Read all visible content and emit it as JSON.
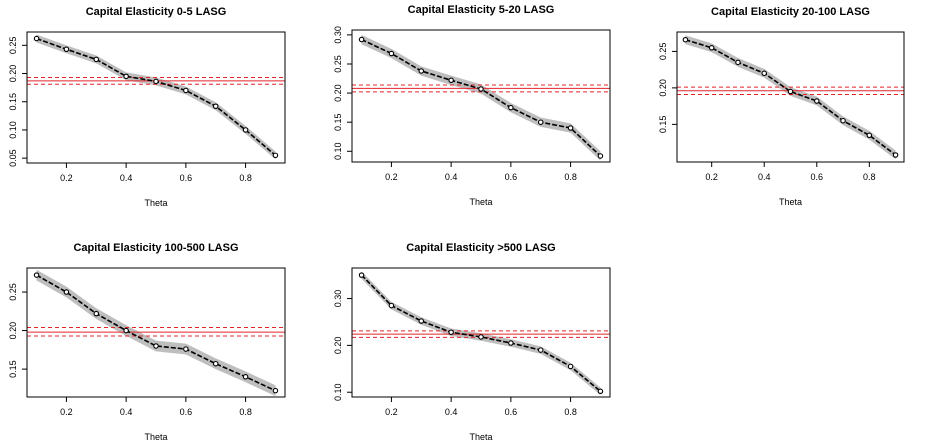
{
  "chart_data": [
    {
      "type": "line",
      "title": "Capital Elasticity 0-5 LASG",
      "xlabel": "Theta",
      "ylabel": "",
      "xlim": [
        0.1,
        0.9
      ],
      "ylim": [
        0.05,
        0.265
      ],
      "xticks": [
        0.2,
        0.4,
        0.6,
        0.8
      ],
      "yticks": [
        0.05,
        0.1,
        0.15,
        0.2,
        0.25
      ],
      "x": [
        0.1,
        0.2,
        0.3,
        0.4,
        0.5,
        0.6,
        0.7,
        0.8,
        0.9
      ],
      "values": [
        0.262,
        0.243,
        0.225,
        0.195,
        0.186,
        0.17,
        0.142,
        0.1,
        0.055
      ],
      "band_halfwidth": 0.007,
      "hline": 0.187,
      "hline_ci": [
        0.181,
        0.193
      ],
      "colors": {
        "line": "#000000",
        "band": "#bebebe",
        "hline": "#e3242b"
      }
    },
    {
      "type": "line",
      "title": "Capital Elasticity 5-20 LASG",
      "xlabel": "Theta",
      "ylabel": "",
      "xlim": [
        0.1,
        0.9
      ],
      "ylim": [
        0.09,
        0.3
      ],
      "xticks": [
        0.2,
        0.4,
        0.6,
        0.8
      ],
      "yticks": [
        0.1,
        0.15,
        0.2,
        0.25,
        0.3
      ],
      "x": [
        0.1,
        0.2,
        0.3,
        0.4,
        0.5,
        0.6,
        0.7,
        0.8,
        0.9
      ],
      "values": [
        0.292,
        0.268,
        0.238,
        0.222,
        0.207,
        0.175,
        0.15,
        0.14,
        0.092
      ],
      "band_halfwidth": 0.008,
      "hline": 0.208,
      "hline_ci": [
        0.202,
        0.214
      ],
      "colors": {
        "line": "#000000",
        "band": "#bebebe",
        "hline": "#e3242b"
      }
    },
    {
      "type": "line",
      "title": "Capital Elasticity 20-100 LASG",
      "xlabel": "Theta",
      "ylabel": "",
      "xlim": [
        0.1,
        0.9
      ],
      "ylim": [
        0.105,
        0.27
      ],
      "xticks": [
        0.2,
        0.4,
        0.6,
        0.8
      ],
      "yticks": [
        0.15,
        0.2,
        0.25
      ],
      "x": [
        0.1,
        0.2,
        0.3,
        0.4,
        0.5,
        0.6,
        0.7,
        0.8,
        0.9
      ],
      "values": [
        0.266,
        0.255,
        0.235,
        0.22,
        0.195,
        0.182,
        0.155,
        0.135,
        0.108
      ],
      "band_halfwidth": 0.006,
      "hline": 0.196,
      "hline_ci": [
        0.191,
        0.201
      ],
      "colors": {
        "line": "#000000",
        "band": "#bebebe",
        "hline": "#e3242b"
      }
    },
    {
      "type": "line",
      "title": "Capital Elasticity 100-500 LASG",
      "xlabel": "Theta",
      "ylabel": "",
      "xlim": [
        0.1,
        0.9
      ],
      "ylim": [
        0.12,
        0.275
      ],
      "xticks": [
        0.2,
        0.4,
        0.6,
        0.8
      ],
      "yticks": [
        0.15,
        0.2,
        0.25
      ],
      "x": [
        0.1,
        0.2,
        0.3,
        0.4,
        0.5,
        0.6,
        0.7,
        0.8,
        0.9
      ],
      "values": [
        0.272,
        0.25,
        0.222,
        0.2,
        0.18,
        0.176,
        0.157,
        0.14,
        0.122
      ],
      "band_halfwidth": 0.007,
      "hline": 0.198,
      "hline_ci": [
        0.193,
        0.204
      ],
      "colors": {
        "line": "#000000",
        "band": "#bebebe",
        "hline": "#e3242b"
      }
    },
    {
      "type": "line",
      "title": "Capital Elasticity >500 LASG",
      "xlabel": "Theta",
      "ylabel": "",
      "xlim": [
        0.1,
        0.9
      ],
      "ylim": [
        0.1,
        0.355
      ],
      "xticks": [
        0.2,
        0.4,
        0.6,
        0.8
      ],
      "yticks": [
        0.1,
        0.2,
        0.3
      ],
      "x": [
        0.1,
        0.2,
        0.3,
        0.4,
        0.5,
        0.6,
        0.7,
        0.8,
        0.9
      ],
      "values": [
        0.35,
        0.285,
        0.252,
        0.228,
        0.218,
        0.205,
        0.19,
        0.155,
        0.102
      ],
      "band_halfwidth": 0.008,
      "hline": 0.224,
      "hline_ci": [
        0.217,
        0.231
      ],
      "colors": {
        "line": "#000000",
        "band": "#bebebe",
        "hline": "#e3242b"
      }
    }
  ]
}
